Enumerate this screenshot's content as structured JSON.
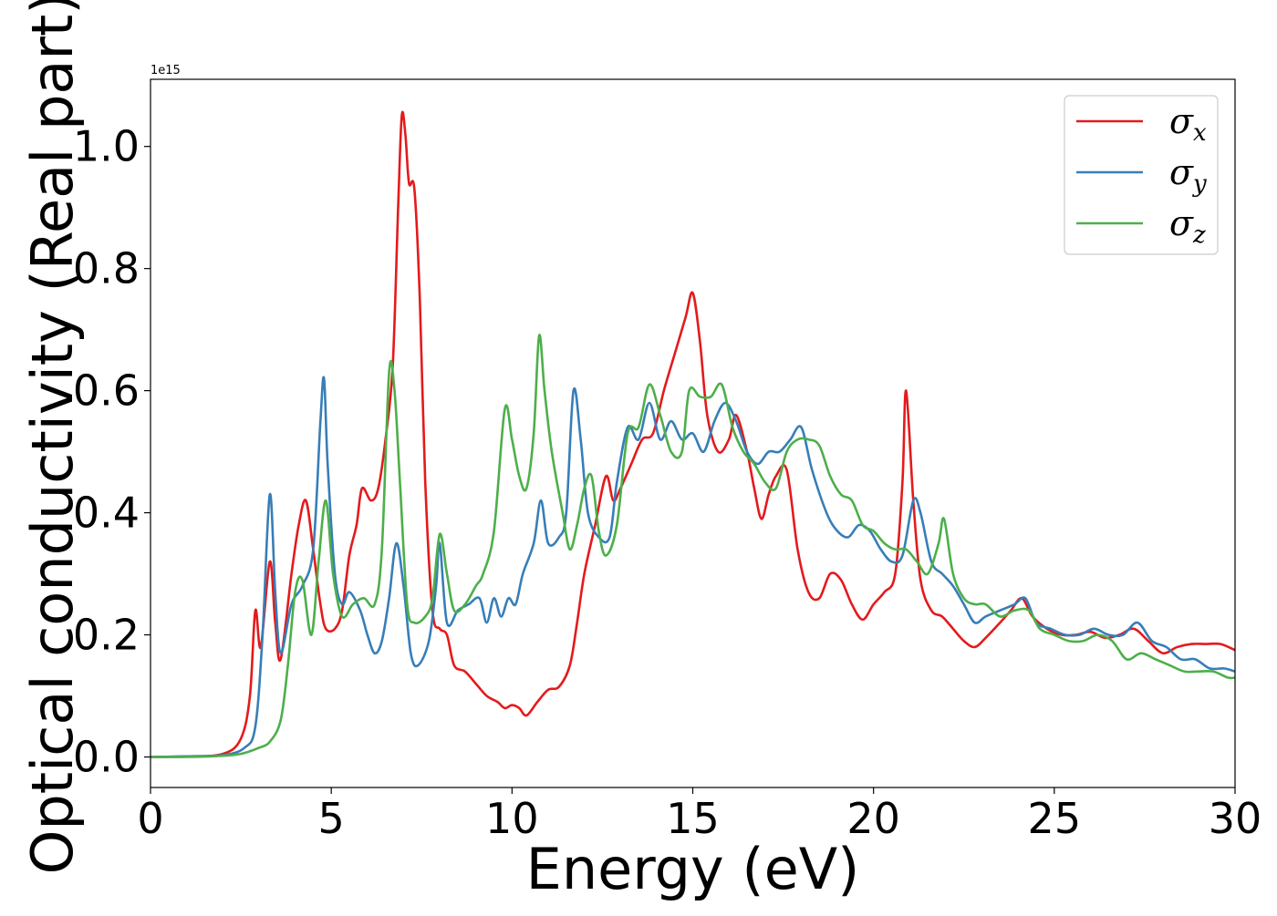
{
  "chart_data": {
    "type": "line",
    "xlabel": "Energy (eV)",
    "ylabel": "Optical conductivity (Real part)",
    "offset_text": "1e15",
    "y_scale": 1000000000000000.0,
    "xlim": [
      0,
      30
    ],
    "ylim": [
      -0.05,
      1.11
    ],
    "x_ticks": [
      0,
      5,
      10,
      15,
      20,
      25,
      30
    ],
    "x_tick_labels": [
      "0",
      "5",
      "10",
      "15",
      "20",
      "25",
      "30"
    ],
    "y_ticks": [
      0.0,
      0.2,
      0.4,
      0.6,
      0.8,
      1.0
    ],
    "y_tick_labels": [
      "0.0",
      "0.2",
      "0.4",
      "0.6",
      "0.8",
      "1.0"
    ],
    "grid": false,
    "legend": {
      "placement": "top-right"
    },
    "series": [
      {
        "name": "σx",
        "symbol": "σ",
        "subscript": "x",
        "color": "#e41a1c",
        "points": [
          [
            0,
            0
          ],
          [
            1,
            0.001
          ],
          [
            2,
            0.005
          ],
          [
            2.5,
            0.03
          ],
          [
            2.75,
            0.1
          ],
          [
            2.9,
            0.24
          ],
          [
            3.05,
            0.18
          ],
          [
            3.3,
            0.32
          ],
          [
            3.45,
            0.22
          ],
          [
            3.6,
            0.16
          ],
          [
            3.9,
            0.3
          ],
          [
            4.1,
            0.38
          ],
          [
            4.3,
            0.42
          ],
          [
            4.5,
            0.34
          ],
          [
            4.7,
            0.25
          ],
          [
            4.85,
            0.21
          ],
          [
            5.1,
            0.21
          ],
          [
            5.3,
            0.24
          ],
          [
            5.5,
            0.33
          ],
          [
            5.7,
            0.38
          ],
          [
            5.85,
            0.44
          ],
          [
            6.1,
            0.42
          ],
          [
            6.3,
            0.44
          ],
          [
            6.5,
            0.52
          ],
          [
            6.7,
            0.64
          ],
          [
            6.85,
            0.9
          ],
          [
            6.95,
            1.05
          ],
          [
            7.05,
            1.02
          ],
          [
            7.15,
            0.94
          ],
          [
            7.3,
            0.93
          ],
          [
            7.45,
            0.75
          ],
          [
            7.6,
            0.45
          ],
          [
            7.8,
            0.24
          ],
          [
            8,
            0.21
          ],
          [
            8.2,
            0.2
          ],
          [
            8.4,
            0.15
          ],
          [
            8.7,
            0.14
          ],
          [
            9,
            0.12
          ],
          [
            9.3,
            0.1
          ],
          [
            9.6,
            0.09
          ],
          [
            9.8,
            0.08
          ],
          [
            10,
            0.085
          ],
          [
            10.2,
            0.08
          ],
          [
            10.4,
            0.068
          ],
          [
            10.7,
            0.09
          ],
          [
            11,
            0.11
          ],
          [
            11.3,
            0.115
          ],
          [
            11.6,
            0.15
          ],
          [
            11.8,
            0.22
          ],
          [
            12,
            0.3
          ],
          [
            12.3,
            0.38
          ],
          [
            12.6,
            0.46
          ],
          [
            12.8,
            0.42
          ],
          [
            13,
            0.44
          ],
          [
            13.3,
            0.48
          ],
          [
            13.6,
            0.52
          ],
          [
            13.9,
            0.53
          ],
          [
            14.2,
            0.6
          ],
          [
            14.5,
            0.66
          ],
          [
            14.8,
            0.72
          ],
          [
            15,
            0.76
          ],
          [
            15.2,
            0.68
          ],
          [
            15.4,
            0.56
          ],
          [
            15.7,
            0.5
          ],
          [
            16,
            0.52
          ],
          [
            16.2,
            0.56
          ],
          [
            16.5,
            0.5
          ],
          [
            16.7,
            0.44
          ],
          [
            16.9,
            0.39
          ],
          [
            17.1,
            0.43
          ],
          [
            17.3,
            0.46
          ],
          [
            17.6,
            0.47
          ],
          [
            17.9,
            0.34
          ],
          [
            18.2,
            0.27
          ],
          [
            18.5,
            0.26
          ],
          [
            18.8,
            0.3
          ],
          [
            19.1,
            0.29
          ],
          [
            19.4,
            0.25
          ],
          [
            19.7,
            0.225
          ],
          [
            20,
            0.25
          ],
          [
            20.3,
            0.27
          ],
          [
            20.6,
            0.3
          ],
          [
            20.8,
            0.45
          ],
          [
            20.9,
            0.6
          ],
          [
            21.1,
            0.42
          ],
          [
            21.3,
            0.29
          ],
          [
            21.6,
            0.24
          ],
          [
            21.9,
            0.23
          ],
          [
            22.2,
            0.21
          ],
          [
            22.5,
            0.19
          ],
          [
            22.8,
            0.18
          ],
          [
            23.1,
            0.195
          ],
          [
            23.5,
            0.22
          ],
          [
            23.8,
            0.24
          ],
          [
            24.1,
            0.26
          ],
          [
            24.4,
            0.23
          ],
          [
            24.8,
            0.21
          ],
          [
            25.2,
            0.2
          ],
          [
            25.6,
            0.2
          ],
          [
            26,
            0.205
          ],
          [
            26.4,
            0.195
          ],
          [
            26.8,
            0.2
          ],
          [
            27.2,
            0.21
          ],
          [
            27.6,
            0.19
          ],
          [
            28,
            0.17
          ],
          [
            28.4,
            0.18
          ],
          [
            28.8,
            0.185
          ],
          [
            29.2,
            0.185
          ],
          [
            29.6,
            0.185
          ],
          [
            30,
            0.175
          ]
        ]
      },
      {
        "name": "σy",
        "symbol": "σ",
        "subscript": "y",
        "color": "#377eb8",
        "points": [
          [
            0,
            0
          ],
          [
            1,
            0.001
          ],
          [
            2,
            0.003
          ],
          [
            2.6,
            0.015
          ],
          [
            2.9,
            0.05
          ],
          [
            3.1,
            0.2
          ],
          [
            3.3,
            0.43
          ],
          [
            3.45,
            0.27
          ],
          [
            3.6,
            0.17
          ],
          [
            3.9,
            0.25
          ],
          [
            4.2,
            0.28
          ],
          [
            4.5,
            0.34
          ],
          [
            4.7,
            0.55
          ],
          [
            4.8,
            0.62
          ],
          [
            4.9,
            0.48
          ],
          [
            5.1,
            0.3
          ],
          [
            5.3,
            0.25
          ],
          [
            5.5,
            0.27
          ],
          [
            5.8,
            0.24
          ],
          [
            6,
            0.2
          ],
          [
            6.2,
            0.17
          ],
          [
            6.4,
            0.19
          ],
          [
            6.6,
            0.26
          ],
          [
            6.8,
            0.35
          ],
          [
            7,
            0.28
          ],
          [
            7.2,
            0.17
          ],
          [
            7.4,
            0.15
          ],
          [
            7.7,
            0.19
          ],
          [
            7.9,
            0.28
          ],
          [
            8,
            0.35
          ],
          [
            8.2,
            0.22
          ],
          [
            8.5,
            0.24
          ],
          [
            8.8,
            0.25
          ],
          [
            9.1,
            0.26
          ],
          [
            9.3,
            0.22
          ],
          [
            9.5,
            0.26
          ],
          [
            9.7,
            0.23
          ],
          [
            9.9,
            0.26
          ],
          [
            10.1,
            0.25
          ],
          [
            10.3,
            0.3
          ],
          [
            10.6,
            0.35
          ],
          [
            10.8,
            0.42
          ],
          [
            11,
            0.35
          ],
          [
            11.3,
            0.36
          ],
          [
            11.5,
            0.4
          ],
          [
            11.7,
            0.6
          ],
          [
            11.9,
            0.52
          ],
          [
            12.1,
            0.4
          ],
          [
            12.4,
            0.36
          ],
          [
            12.7,
            0.36
          ],
          [
            12.9,
            0.45
          ],
          [
            13.2,
            0.54
          ],
          [
            13.5,
            0.52
          ],
          [
            13.8,
            0.58
          ],
          [
            14.1,
            0.52
          ],
          [
            14.4,
            0.55
          ],
          [
            14.7,
            0.52
          ],
          [
            15,
            0.53
          ],
          [
            15.3,
            0.5
          ],
          [
            15.6,
            0.55
          ],
          [
            15.9,
            0.58
          ],
          [
            16.2,
            0.55
          ],
          [
            16.5,
            0.5
          ],
          [
            16.8,
            0.48
          ],
          [
            17.1,
            0.5
          ],
          [
            17.4,
            0.5
          ],
          [
            17.7,
            0.52
          ],
          [
            18,
            0.54
          ],
          [
            18.3,
            0.47
          ],
          [
            18.7,
            0.4
          ],
          [
            19,
            0.37
          ],
          [
            19.3,
            0.36
          ],
          [
            19.6,
            0.38
          ],
          [
            19.9,
            0.37
          ],
          [
            20.2,
            0.34
          ],
          [
            20.5,
            0.32
          ],
          [
            20.8,
            0.33
          ],
          [
            21.1,
            0.42
          ],
          [
            21.3,
            0.4
          ],
          [
            21.6,
            0.32
          ],
          [
            21.9,
            0.3
          ],
          [
            22.2,
            0.28
          ],
          [
            22.5,
            0.25
          ],
          [
            22.8,
            0.22
          ],
          [
            23.1,
            0.23
          ],
          [
            23.5,
            0.24
          ],
          [
            23.9,
            0.25
          ],
          [
            24.2,
            0.26
          ],
          [
            24.5,
            0.22
          ],
          [
            24.9,
            0.21
          ],
          [
            25.3,
            0.2
          ],
          [
            25.7,
            0.2
          ],
          [
            26.1,
            0.21
          ],
          [
            26.5,
            0.2
          ],
          [
            26.9,
            0.2
          ],
          [
            27.3,
            0.22
          ],
          [
            27.7,
            0.19
          ],
          [
            28.1,
            0.18
          ],
          [
            28.5,
            0.16
          ],
          [
            28.9,
            0.16
          ],
          [
            29.3,
            0.145
          ],
          [
            29.7,
            0.145
          ],
          [
            30,
            0.14
          ]
        ]
      },
      {
        "name": "σz",
        "symbol": "σ",
        "subscript": "z",
        "color": "#4daf4a",
        "points": [
          [
            0,
            0
          ],
          [
            1,
            0
          ],
          [
            2,
            0.002
          ],
          [
            2.5,
            0.005
          ],
          [
            3,
            0.015
          ],
          [
            3.3,
            0.025
          ],
          [
            3.6,
            0.06
          ],
          [
            3.8,
            0.15
          ],
          [
            4,
            0.27
          ],
          [
            4.2,
            0.29
          ],
          [
            4.45,
            0.2
          ],
          [
            4.65,
            0.32
          ],
          [
            4.85,
            0.42
          ],
          [
            5.05,
            0.3
          ],
          [
            5.3,
            0.23
          ],
          [
            5.6,
            0.25
          ],
          [
            5.9,
            0.26
          ],
          [
            6.2,
            0.25
          ],
          [
            6.4,
            0.34
          ],
          [
            6.6,
            0.63
          ],
          [
            6.75,
            0.6
          ],
          [
            6.9,
            0.45
          ],
          [
            7.1,
            0.25
          ],
          [
            7.3,
            0.22
          ],
          [
            7.6,
            0.23
          ],
          [
            7.8,
            0.26
          ],
          [
            8,
            0.365
          ],
          [
            8.2,
            0.3
          ],
          [
            8.4,
            0.24
          ],
          [
            8.7,
            0.25
          ],
          [
            9,
            0.28
          ],
          [
            9.2,
            0.3
          ],
          [
            9.5,
            0.37
          ],
          [
            9.8,
            0.57
          ],
          [
            10,
            0.52
          ],
          [
            10.2,
            0.46
          ],
          [
            10.4,
            0.44
          ],
          [
            10.6,
            0.53
          ],
          [
            10.75,
            0.69
          ],
          [
            10.9,
            0.6
          ],
          [
            11.1,
            0.5
          ],
          [
            11.4,
            0.4
          ],
          [
            11.6,
            0.34
          ],
          [
            11.8,
            0.38
          ],
          [
            12,
            0.44
          ],
          [
            12.2,
            0.46
          ],
          [
            12.4,
            0.37
          ],
          [
            12.6,
            0.33
          ],
          [
            12.9,
            0.38
          ],
          [
            13.2,
            0.53
          ],
          [
            13.5,
            0.54
          ],
          [
            13.8,
            0.61
          ],
          [
            14.1,
            0.56
          ],
          [
            14.4,
            0.5
          ],
          [
            14.7,
            0.5
          ],
          [
            14.9,
            0.6
          ],
          [
            15.2,
            0.59
          ],
          [
            15.5,
            0.59
          ],
          [
            15.8,
            0.61
          ],
          [
            16.1,
            0.54
          ],
          [
            16.4,
            0.5
          ],
          [
            16.7,
            0.48
          ],
          [
            17,
            0.45
          ],
          [
            17.3,
            0.44
          ],
          [
            17.6,
            0.5
          ],
          [
            17.9,
            0.52
          ],
          [
            18.2,
            0.52
          ],
          [
            18.5,
            0.51
          ],
          [
            18.8,
            0.46
          ],
          [
            19.1,
            0.43
          ],
          [
            19.4,
            0.42
          ],
          [
            19.7,
            0.38
          ],
          [
            20,
            0.37
          ],
          [
            20.3,
            0.35
          ],
          [
            20.6,
            0.34
          ],
          [
            20.9,
            0.34
          ],
          [
            21.2,
            0.32
          ],
          [
            21.5,
            0.3
          ],
          [
            21.8,
            0.35
          ],
          [
            21.95,
            0.39
          ],
          [
            22.2,
            0.3
          ],
          [
            22.5,
            0.26
          ],
          [
            22.8,
            0.25
          ],
          [
            23.1,
            0.25
          ],
          [
            23.5,
            0.23
          ],
          [
            23.9,
            0.24
          ],
          [
            24.3,
            0.24
          ],
          [
            24.6,
            0.21
          ],
          [
            25,
            0.2
          ],
          [
            25.4,
            0.19
          ],
          [
            25.8,
            0.19
          ],
          [
            26.2,
            0.2
          ],
          [
            26.6,
            0.19
          ],
          [
            27,
            0.16
          ],
          [
            27.4,
            0.17
          ],
          [
            27.8,
            0.16
          ],
          [
            28.2,
            0.15
          ],
          [
            28.6,
            0.14
          ],
          [
            29,
            0.14
          ],
          [
            29.4,
            0.14
          ],
          [
            29.8,
            0.13
          ],
          [
            30,
            0.13
          ]
        ]
      }
    ]
  }
}
